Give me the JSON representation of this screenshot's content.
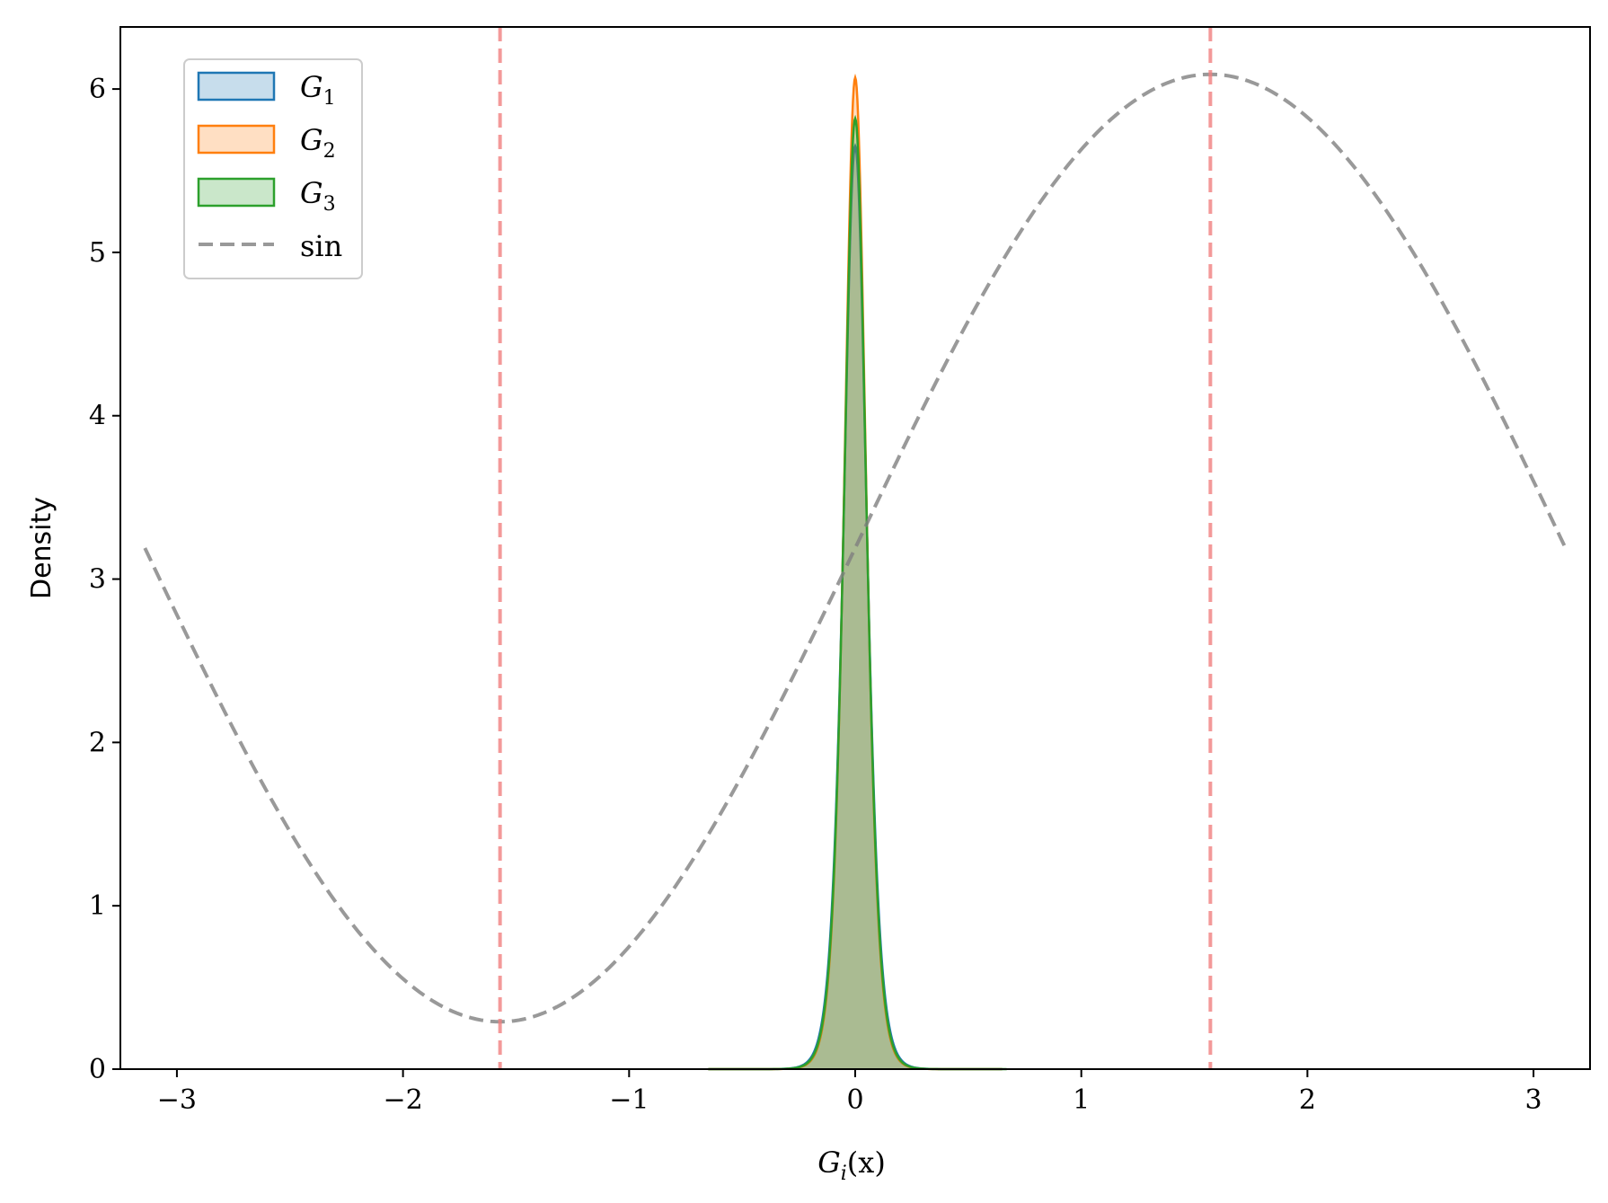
{
  "chart_data": {
    "type": "area",
    "title": "",
    "xlabel_main": "G",
    "xlabel_sub": "i",
    "xlabel_tail": "(x)",
    "ylabel": "Density",
    "xlim": [
      -3.25,
      3.25
    ],
    "ylim": [
      0,
      6.38
    ],
    "x_ticks": [
      -3,
      -2,
      -1,
      0,
      1,
      2,
      3
    ],
    "x_tick_labels": [
      "−3",
      "−2",
      "−1",
      "0",
      "1",
      "2",
      "3"
    ],
    "y_ticks": [
      0,
      1,
      2,
      3,
      4,
      5,
      6
    ],
    "y_tick_labels": [
      "0",
      "1",
      "2",
      "3",
      "4",
      "5",
      "6"
    ],
    "grid": false,
    "legend_position": "top-left",
    "series": [
      {
        "name_main": "G",
        "name_sub": "1",
        "kind": "density",
        "color": "#1f77b4",
        "peak": 5.65,
        "center": 0.0,
        "spread": 0.068,
        "support": [
          -0.65,
          0.65
        ]
      },
      {
        "name_main": "G",
        "name_sub": "2",
        "kind": "density",
        "color": "#ff7f0e",
        "peak": 6.07,
        "center": 0.0,
        "spread": 0.064,
        "support": [
          -0.65,
          0.65
        ]
      },
      {
        "name_main": "G",
        "name_sub": "3",
        "kind": "density",
        "color": "#2ca02c",
        "peak": 5.82,
        "center": 0.0,
        "spread": 0.066,
        "support": [
          -0.65,
          0.67
        ]
      }
    ],
    "sin_curve": {
      "name": "sin",
      "color": "#808080",
      "x_range": [
        -3.14159,
        3.14159
      ],
      "offset": 3.19,
      "amplitude": 2.9
    },
    "vertical_lines": [
      {
        "x": -1.5708,
        "color": "#f08080"
      },
      {
        "x": 1.5708,
        "color": "#f08080"
      }
    ]
  }
}
